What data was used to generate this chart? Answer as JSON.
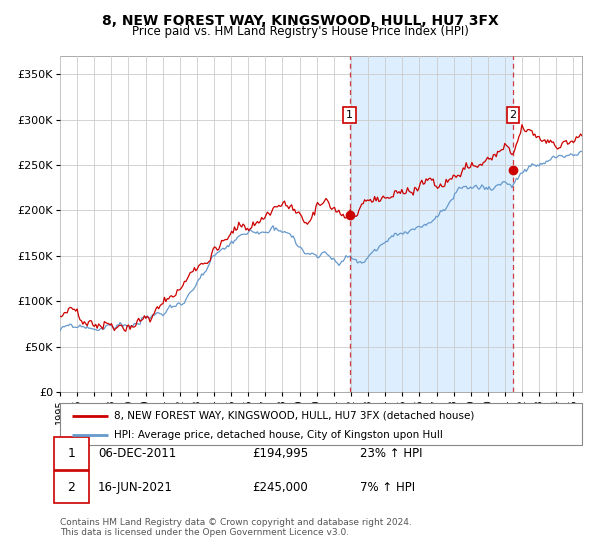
{
  "title": "8, NEW FOREST WAY, KINGSWOOD, HULL, HU7 3FX",
  "subtitle": "Price paid vs. HM Land Registry's House Price Index (HPI)",
  "legend_line1": "8, NEW FOREST WAY, KINGSWOOD, HULL, HU7 3FX (detached house)",
  "legend_line2": "HPI: Average price, detached house, City of Kingston upon Hull",
  "sale1_date": "06-DEC-2011",
  "sale1_price": "£194,995",
  "sale1_hpi": "23% ↑ HPI",
  "sale2_date": "16-JUN-2021",
  "sale2_price": "£245,000",
  "sale2_hpi": "7% ↑ HPI",
  "footer": "Contains HM Land Registry data © Crown copyright and database right 2024.\nThis data is licensed under the Open Government Licence v3.0.",
  "red_line_color": "#cc0000",
  "blue_line_color": "#6699cc",
  "shade_color": "#ddeeff",
  "grid_color": "#cccccc",
  "bg_color": "#ffffff",
  "sale1_year": 2011.92,
  "sale2_year": 2021.46,
  "sale1_price_val": 194995,
  "sale2_price_val": 245000,
  "ylim": [
    0,
    370000
  ],
  "xlim_start": 1995.0,
  "xlim_end": 2025.5
}
